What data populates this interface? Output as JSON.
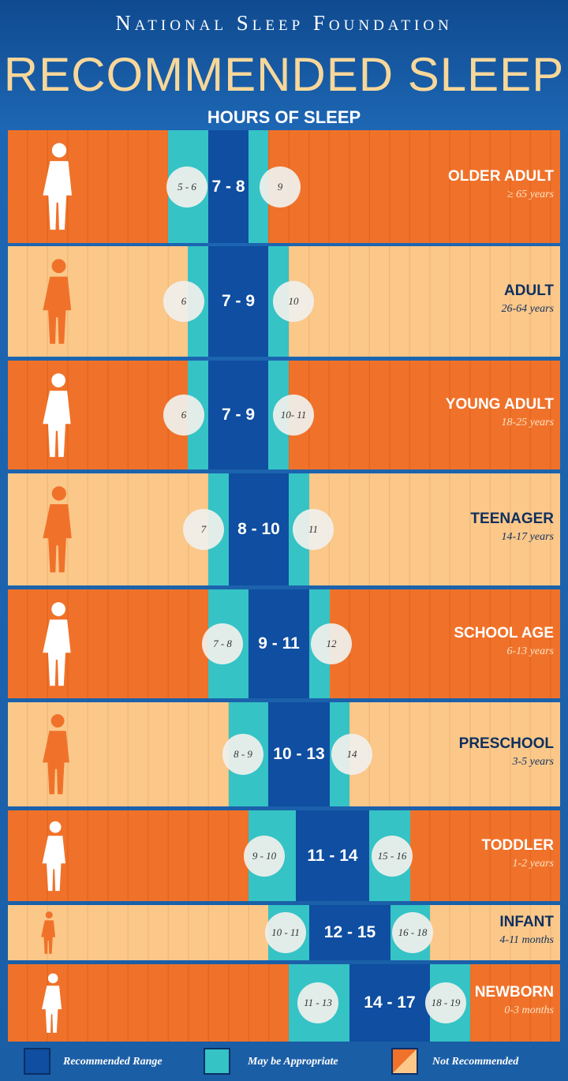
{
  "header": {
    "brand": "National Sleep Foundation",
    "title": "RECOMMENDED SLEEP",
    "subtitle": "HOURS OF SLEEP"
  },
  "rows": [
    {
      "name": "OLDER ADULT",
      "age": "≥ 65 years",
      "recommended": "7 - 8",
      "low": "5 - 6",
      "high": "9"
    },
    {
      "name": "ADULT",
      "age": "26-64 years",
      "recommended": "7 - 9",
      "low": "6",
      "high": "10"
    },
    {
      "name": "YOUNG ADULT",
      "age": "18-25 years",
      "recommended": "7 - 9",
      "low": "6",
      "high": "10- 11"
    },
    {
      "name": "TEENAGER",
      "age": "14-17 years",
      "recommended": "8 - 10",
      "low": "7",
      "high": "11"
    },
    {
      "name": "SCHOOL AGE",
      "age": "6-13 years",
      "recommended": "9 - 11",
      "low": "7 - 8",
      "high": "12"
    },
    {
      "name": "PRESCHOOL",
      "age": "3-5 years",
      "recommended": "10 - 13",
      "low": "8 - 9",
      "high": "14"
    },
    {
      "name": "TODDLER",
      "age": "1-2 years",
      "recommended": "11 - 14",
      "low": "9 - 10",
      "high": "15 - 16"
    },
    {
      "name": "INFANT",
      "age": "4-11 months",
      "recommended": "12 - 15",
      "low": "10 - 11",
      "high": "16 - 18"
    },
    {
      "name": "NEWBORN",
      "age": "0-3 months",
      "recommended": "14 - 17",
      "low": "11 - 13",
      "high": "18 - 19"
    }
  ],
  "legend": [
    "Recommended Range",
    "May be Appropriate",
    "Not Recommended"
  ]
}
